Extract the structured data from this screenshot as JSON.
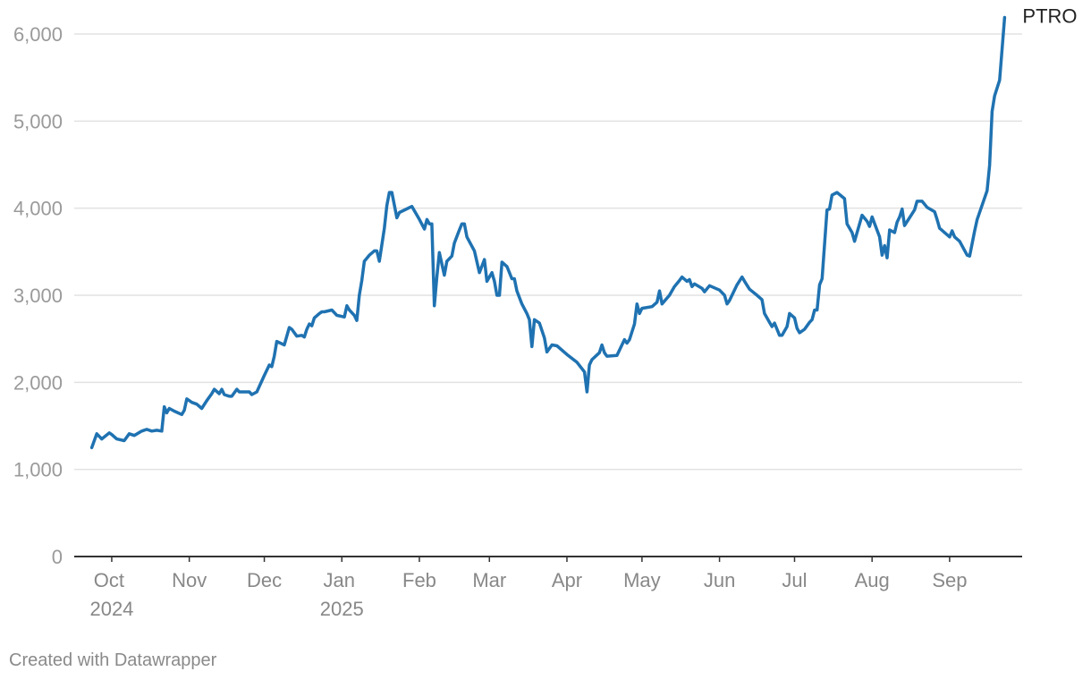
{
  "chart_data": {
    "type": "line",
    "series": [
      {
        "name": "PTRO",
        "color": "#1f72b1",
        "x": [
          -8,
          -6,
          -5,
          -4,
          -1,
          0,
          2,
          5,
          7,
          9,
          12,
          14,
          16,
          18,
          20,
          21,
          22,
          23,
          25,
          28,
          29,
          30,
          32,
          34,
          36,
          38,
          40,
          41,
          43,
          44,
          45,
          47,
          48,
          50,
          51,
          55,
          56,
          58,
          61,
          63,
          64,
          65,
          66,
          69,
          71,
          72,
          74,
          76,
          77,
          78,
          79,
          80,
          81,
          83,
          84,
          85,
          88,
          90,
          93,
          94,
          95,
          97,
          98,
          99,
          100,
          101,
          103,
          105,
          106,
          107,
          109,
          110,
          111,
          112,
          114,
          115,
          120,
          123,
          125,
          126,
          127,
          128,
          129,
          130,
          131,
          133,
          134,
          136,
          137,
          139,
          140,
          141,
          142,
          145,
          147,
          149,
          150,
          152,
          153,
          154,
          155,
          156,
          158,
          160,
          161,
          162,
          164,
          166,
          167,
          168,
          169,
          171,
          173,
          174,
          176,
          178,
          182,
          186,
          189,
          190,
          191,
          192,
          195,
          196,
          197,
          198,
          202,
          205,
          206,
          207,
          209,
          210,
          211,
          212,
          216,
          218,
          219,
          220,
          223,
          225,
          227,
          228,
          230,
          231,
          232,
          233,
          236,
          237,
          239,
          243,
          245,
          246,
          247,
          250,
          252,
          253,
          255,
          258,
          260,
          261,
          263,
          264,
          265,
          267,
          268,
          270,
          271,
          273,
          274,
          275,
          277,
          279,
          280,
          281,
          282,
          283,
          284,
          286,
          287,
          288,
          290,
          293,
          294,
          296,
          297,
          300,
          302,
          303,
          304,
          307,
          308,
          309,
          310,
          311,
          313,
          314,
          315,
          316,
          317,
          321,
          322,
          324,
          326,
          329,
          330,
          331,
          335,
          336,
          337,
          339,
          342,
          343,
          345,
          346,
          350,
          351,
          352,
          353,
          355,
          357
        ],
        "values": [
          1250,
          1410,
          1380,
          1350,
          1420,
          1400,
          1350,
          1330,
          1410,
          1390,
          1440,
          1460,
          1440,
          1450,
          1440,
          1720,
          1650,
          1700,
          1670,
          1630,
          1680,
          1810,
          1770,
          1750,
          1700,
          1790,
          1870,
          1920,
          1870,
          1920,
          1860,
          1840,
          1840,
          1920,
          1890,
          1890,
          1860,
          1890,
          2080,
          2200,
          2180,
          2300,
          2470,
          2430,
          2630,
          2610,
          2530,
          2540,
          2520,
          2610,
          2670,
          2650,
          2740,
          2790,
          2810,
          2810,
          2830,
          2770,
          2750,
          2880,
          2830,
          2770,
          2710,
          3000,
          3170,
          3390,
          3460,
          3510,
          3510,
          3390,
          3770,
          4030,
          4180,
          4180,
          3890,
          3950,
          4020,
          3870,
          3760,
          3870,
          3820,
          3820,
          2880,
          3210,
          3490,
          3230,
          3390,
          3450,
          3600,
          3750,
          3820,
          3820,
          3670,
          3510,
          3260,
          3410,
          3160,
          3260,
          3160,
          3000,
          3000,
          3380,
          3330,
          3190,
          3190,
          3050,
          2900,
          2790,
          2720,
          2410,
          2720,
          2680,
          2510,
          2350,
          2430,
          2420,
          2320,
          2230,
          2120,
          1890,
          2200,
          2260,
          2340,
          2430,
          2340,
          2300,
          2310,
          2490,
          2450,
          2490,
          2670,
          2900,
          2790,
          2850,
          2870,
          2920,
          3050,
          2900,
          3000,
          3100,
          3170,
          3210,
          3160,
          3180,
          3100,
          3130,
          3080,
          3040,
          3110,
          3060,
          3000,
          2900,
          2940,
          3120,
          3210,
          3160,
          3070,
          3000,
          2950,
          2790,
          2690,
          2640,
          2680,
          2540,
          2540,
          2640,
          2790,
          2740,
          2620,
          2570,
          2610,
          2690,
          2720,
          2830,
          2830,
          3120,
          3190,
          3980,
          3990,
          4150,
          4180,
          4110,
          3820,
          3720,
          3620,
          3920,
          3850,
          3790,
          3900,
          3670,
          3460,
          3570,
          3430,
          3750,
          3720,
          3840,
          3900,
          3990,
          3800,
          3980,
          4080,
          4080,
          4010,
          3960,
          3870,
          3770,
          3670,
          3740,
          3670,
          3620,
          3460,
          3450,
          3740,
          3870,
          4200,
          4490,
          5110,
          5290,
          5470,
          6190
        ]
      }
    ],
    "xlim": [
      -15,
      364
    ],
    "xticks": [
      {
        "value": 0,
        "label": "Oct 2024"
      },
      {
        "value": 31,
        "label": "Nov"
      },
      {
        "value": 61,
        "label": "Dec"
      },
      {
        "value": 92,
        "label": "Jan 2025"
      },
      {
        "value": 123,
        "label": "Feb"
      },
      {
        "value": 151,
        "label": "Mar"
      },
      {
        "value": 182,
        "label": "Apr"
      },
      {
        "value": 212,
        "label": "May"
      },
      {
        "value": 243,
        "label": "Jun"
      },
      {
        "value": 273,
        "label": "Jul"
      },
      {
        "value": 304,
        "label": "Aug"
      },
      {
        "value": 335,
        "label": "Sep"
      }
    ],
    "ylim": [
      0,
      6000
    ],
    "yticks": [
      0,
      {
        "value": 1000,
        "label": "1,000"
      },
      {
        "value": 2000,
        "label": "2,000"
      },
      {
        "value": 3000,
        "label": "3,000"
      },
      {
        "value": 4000,
        "label": "4,000"
      },
      {
        "value": 5000,
        "label": "5,000"
      },
      {
        "value": 6000,
        "label": "6,000"
      }
    ],
    "grid": true,
    "footer": "Created with Datawrapper"
  }
}
